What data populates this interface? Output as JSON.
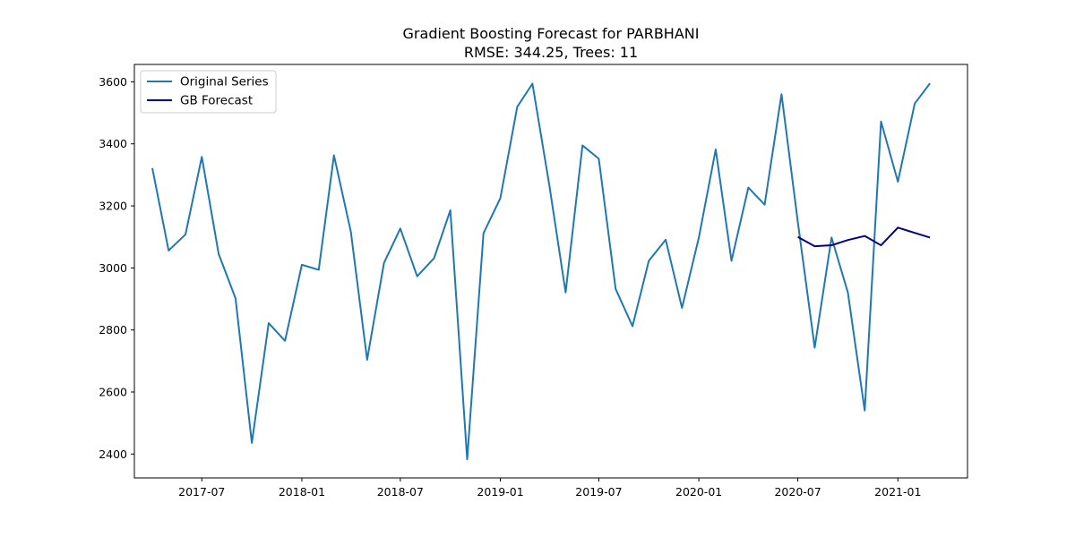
{
  "chart_data": {
    "type": "line",
    "title": "Gradient Boosting Forecast for PARBHANI",
    "subtitle": "RMSE: 344.25, Trees: 11",
    "xlabel": "",
    "ylabel": "",
    "xlim": [
      "2017-02-27",
      "2021-05-09"
    ],
    "ylim": [
      2323,
      3656
    ],
    "x_ticks": [
      "2017-07",
      "2018-01",
      "2018-07",
      "2019-01",
      "2019-07",
      "2020-01",
      "2020-07",
      "2021-01"
    ],
    "y_ticks": [
      2400,
      2600,
      2800,
      3000,
      3200,
      3400,
      3600
    ],
    "grid": false,
    "legend": {
      "position": "top-left",
      "entries": [
        "Original Series",
        "GB Forecast"
      ]
    },
    "series": [
      {
        "name": "Original Series",
        "color": "#1f77b4",
        "x": [
          "2017-04",
          "2017-05",
          "2017-06",
          "2017-07",
          "2017-08",
          "2017-09",
          "2017-10",
          "2017-11",
          "2017-12",
          "2018-01",
          "2018-02",
          "2018-03",
          "2018-04",
          "2018-05",
          "2018-06",
          "2018-07",
          "2018-08",
          "2018-09",
          "2018-10",
          "2018-11",
          "2018-12",
          "2019-01",
          "2019-02",
          "2019-03",
          "2019-04",
          "2019-05",
          "2019-06",
          "2019-07",
          "2019-08",
          "2019-09",
          "2019-10",
          "2019-11",
          "2019-12",
          "2020-01",
          "2020-02",
          "2020-03",
          "2020-04",
          "2020-05",
          "2020-06",
          "2020-07",
          "2020-08",
          "2020-09",
          "2020-10",
          "2020-11",
          "2020-12",
          "2021-01",
          "2021-02",
          "2021-03"
        ],
        "values": [
          3322,
          3056,
          3108,
          3358,
          3045,
          2902,
          2436,
          2822,
          2765,
          3010,
          2994,
          3363,
          3117,
          2704,
          3016,
          3127,
          2973,
          3031,
          3186,
          2383,
          3112,
          3225,
          3519,
          3594,
          3267,
          2921,
          3395,
          3352,
          2932,
          2812,
          3023,
          3091,
          2871,
          3098,
          3382,
          3023,
          3259,
          3204,
          3560,
          3148,
          2743,
          3098,
          2921,
          2540,
          3472,
          3278,
          3530,
          3595
        ]
      },
      {
        "name": "GB Forecast",
        "color": "#00008b",
        "x": [
          "2020-07",
          "2020-08",
          "2020-09",
          "2020-10",
          "2020-11",
          "2020-12",
          "2021-01",
          "2021-02",
          "2021-03"
        ],
        "values": [
          3100,
          3070,
          3073,
          3090,
          3103,
          3073,
          3130,
          3113,
          3098
        ]
      }
    ]
  }
}
